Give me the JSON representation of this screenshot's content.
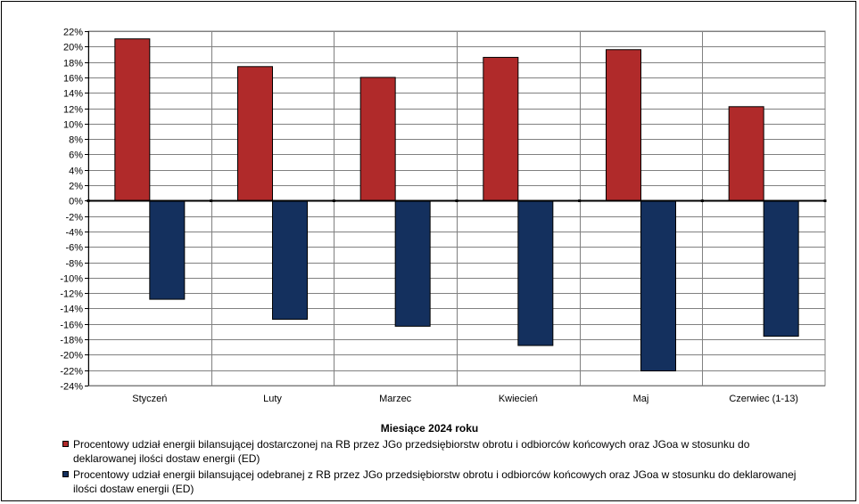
{
  "chart_data": {
    "type": "bar",
    "categories": [
      "Styczeń",
      "Luty",
      "Marzec",
      "Kwiecień",
      "Maj",
      "Czerwiec (1-13)"
    ],
    "series": [
      {
        "name": "Procentowy udział energii bilansującej dostarczonej na RB przez JGo przedsiębiorstw obrotu i odbiorców końcowych oraz JGoa w stosunku do deklarowanej ilości dostaw energii (ED)",
        "color": "#b02a2a",
        "values": [
          21.0,
          17.4,
          16.0,
          18.6,
          19.6,
          12.2
        ]
      },
      {
        "name": "Procentowy udział energii bilansującej odebranej z RB przez JGo przedsiębiorstw obrotu i odbiorców końcowych oraz JGoa w stosunku do deklarowanej ilości dostaw energii (ED)",
        "color": "#14305e",
        "values": [
          -12.8,
          -15.4,
          -16.3,
          -18.8,
          -22.1,
          -17.6
        ]
      }
    ],
    "xlabel": "Miesiące 2024  roku",
    "ylabel": "",
    "ylim": [
      -24,
      22
    ],
    "yticks": [
      "22%",
      "20%",
      "18%",
      "16%",
      "14%",
      "12%",
      "10%",
      "8%",
      "6%",
      "4%",
      "2%",
      "0%",
      "-2%",
      "-4%",
      "-6%",
      "-8%",
      "-10%",
      "-12%",
      "-14%",
      "-16%",
      "-18%",
      "-20%",
      "-22%",
      "-24%"
    ],
    "grid": true,
    "legend_position": "bottom"
  }
}
